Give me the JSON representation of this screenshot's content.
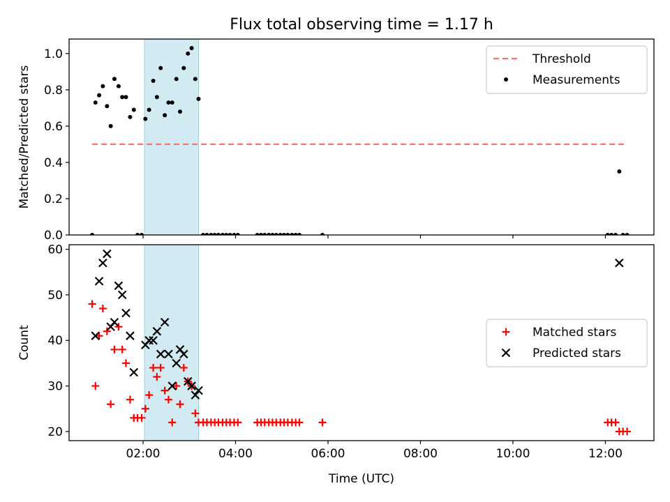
{
  "figure": {
    "title": "Flux total observing time = 1.17 h"
  },
  "chart_data": [
    {
      "type": "scatter",
      "panel": "top",
      "ylabel": "Matched/Predicted stars",
      "xlabel": "",
      "ylim": [
        0,
        1.08
      ],
      "xlim": [
        0.4,
        13.05
      ],
      "yticks": [
        0.0,
        0.2,
        0.4,
        0.6,
        0.8,
        1.0
      ],
      "ytick_labels": [
        "0.0",
        "0.2",
        "0.4",
        "0.6",
        "0.8",
        "1.0"
      ],
      "shaded_interval": {
        "x": [
          2.03,
          3.2
        ],
        "color": "#add8e6"
      },
      "legend_position": "top-right",
      "series": [
        {
          "name": "Threshold",
          "style": "dashed-line",
          "color": "#ff7070",
          "x": [
            0.9,
            12.4
          ],
          "y": [
            0.5,
            0.5
          ]
        },
        {
          "name": "Measurements",
          "style": "dots",
          "color": "#000000",
          "points": [
            [
              0.9,
              0.0
            ],
            [
              0.97,
              0.73
            ],
            [
              1.05,
              0.77
            ],
            [
              1.13,
              0.82
            ],
            [
              1.22,
              0.71
            ],
            [
              1.3,
              0.6
            ],
            [
              1.38,
              0.86
            ],
            [
              1.47,
              0.82
            ],
            [
              1.55,
              0.76
            ],
            [
              1.63,
              0.76
            ],
            [
              1.72,
              0.65
            ],
            [
              1.8,
              0.69
            ],
            [
              1.88,
              0.0
            ],
            [
              1.97,
              0.0
            ],
            [
              2.05,
              0.64
            ],
            [
              2.13,
              0.69
            ],
            [
              2.22,
              0.85
            ],
            [
              2.3,
              0.76
            ],
            [
              2.38,
              0.92
            ],
            [
              2.47,
              0.66
            ],
            [
              2.55,
              0.73
            ],
            [
              2.63,
              0.73
            ],
            [
              2.72,
              0.86
            ],
            [
              2.8,
              0.68
            ],
            [
              2.88,
              0.92
            ],
            [
              2.97,
              1.0
            ],
            [
              3.05,
              1.03
            ],
            [
              3.13,
              0.86
            ],
            [
              3.2,
              0.75
            ],
            [
              3.3,
              0.0
            ],
            [
              3.38,
              0.0
            ],
            [
              3.47,
              0.0
            ],
            [
              3.55,
              0.0
            ],
            [
              3.63,
              0.0
            ],
            [
              3.72,
              0.0
            ],
            [
              3.8,
              0.0
            ],
            [
              3.88,
              0.0
            ],
            [
              3.97,
              0.0
            ],
            [
              4.05,
              0.0
            ],
            [
              4.47,
              0.0
            ],
            [
              4.55,
              0.0
            ],
            [
              4.63,
              0.0
            ],
            [
              4.72,
              0.0
            ],
            [
              4.8,
              0.0
            ],
            [
              4.88,
              0.0
            ],
            [
              4.97,
              0.0
            ],
            [
              5.05,
              0.0
            ],
            [
              5.13,
              0.0
            ],
            [
              5.22,
              0.0
            ],
            [
              5.3,
              0.0
            ],
            [
              5.38,
              0.0
            ],
            [
              5.88,
              0.0
            ],
            [
              12.05,
              0.0
            ],
            [
              12.13,
              0.0
            ],
            [
              12.22,
              0.0
            ],
            [
              12.3,
              0.35
            ],
            [
              12.38,
              0.0
            ],
            [
              12.47,
              0.0
            ]
          ]
        }
      ]
    },
    {
      "type": "scatter",
      "panel": "bottom",
      "ylabel": "Count",
      "xlabel": "Time (UTC)",
      "ylim": [
        18,
        61
      ],
      "xlim": [
        0.4,
        13.05
      ],
      "yticks": [
        20,
        30,
        40,
        50,
        60
      ],
      "ytick_labels": [
        "20",
        "30",
        "40",
        "50",
        "60"
      ],
      "xticks": [
        2,
        4,
        6,
        8,
        10,
        12
      ],
      "xtick_labels": [
        "02:00",
        "04:00",
        "06:00",
        "08:00",
        "10:00",
        "12:00"
      ],
      "shaded_interval": {
        "x": [
          2.03,
          3.2
        ],
        "color": "#add8e6"
      },
      "legend_position": "center-right",
      "series": [
        {
          "name": "Matched stars",
          "marker": "plus",
          "color": "#ff0000",
          "points": [
            [
              0.9,
              48
            ],
            [
              0.97,
              30
            ],
            [
              1.05,
              41
            ],
            [
              1.13,
              47
            ],
            [
              1.22,
              42
            ],
            [
              1.3,
              26
            ],
            [
              1.38,
              38
            ],
            [
              1.47,
              43
            ],
            [
              1.55,
              38
            ],
            [
              1.63,
              35
            ],
            [
              1.72,
              27
            ],
            [
              1.8,
              23
            ],
            [
              1.88,
              23
            ],
            [
              1.97,
              23
            ],
            [
              2.05,
              25
            ],
            [
              2.13,
              28
            ],
            [
              2.22,
              34
            ],
            [
              2.3,
              32
            ],
            [
              2.38,
              34
            ],
            [
              2.47,
              29
            ],
            [
              2.55,
              27
            ],
            [
              2.63,
              22
            ],
            [
              2.72,
              30
            ],
            [
              2.8,
              26
            ],
            [
              2.88,
              34
            ],
            [
              2.97,
              31
            ],
            [
              3.05,
              30
            ],
            [
              3.13,
              24
            ],
            [
              3.2,
              22
            ],
            [
              3.3,
              22
            ],
            [
              3.38,
              22
            ],
            [
              3.47,
              22
            ],
            [
              3.55,
              22
            ],
            [
              3.63,
              22
            ],
            [
              3.72,
              22
            ],
            [
              3.8,
              22
            ],
            [
              3.88,
              22
            ],
            [
              3.97,
              22
            ],
            [
              4.05,
              22
            ],
            [
              4.47,
              22
            ],
            [
              4.55,
              22
            ],
            [
              4.63,
              22
            ],
            [
              4.72,
              22
            ],
            [
              4.8,
              22
            ],
            [
              4.88,
              22
            ],
            [
              4.97,
              22
            ],
            [
              5.05,
              22
            ],
            [
              5.13,
              22
            ],
            [
              5.22,
              22
            ],
            [
              5.3,
              22
            ],
            [
              5.38,
              22
            ],
            [
              5.88,
              22
            ],
            [
              12.05,
              22
            ],
            [
              12.13,
              22
            ],
            [
              12.22,
              22
            ],
            [
              12.3,
              20
            ],
            [
              12.38,
              20
            ],
            [
              12.47,
              20
            ]
          ]
        },
        {
          "name": "Predicted stars",
          "marker": "x",
          "color": "#000000",
          "points": [
            [
              0.97,
              41
            ],
            [
              1.05,
              53
            ],
            [
              1.13,
              57
            ],
            [
              1.22,
              59
            ],
            [
              1.3,
              43
            ],
            [
              1.38,
              44
            ],
            [
              1.47,
              52
            ],
            [
              1.55,
              50
            ],
            [
              1.63,
              46
            ],
            [
              1.72,
              41
            ],
            [
              1.8,
              33
            ],
            [
              2.05,
              39
            ],
            [
              2.13,
              40
            ],
            [
              2.22,
              40
            ],
            [
              2.3,
              42
            ],
            [
              2.38,
              37
            ],
            [
              2.47,
              44
            ],
            [
              2.55,
              37
            ],
            [
              2.63,
              30
            ],
            [
              2.72,
              35
            ],
            [
              2.8,
              38
            ],
            [
              2.88,
              37
            ],
            [
              2.97,
              31
            ],
            [
              3.05,
              30
            ],
            [
              3.13,
              28
            ],
            [
              3.2,
              29
            ],
            [
              12.3,
              57
            ]
          ]
        }
      ]
    }
  ]
}
